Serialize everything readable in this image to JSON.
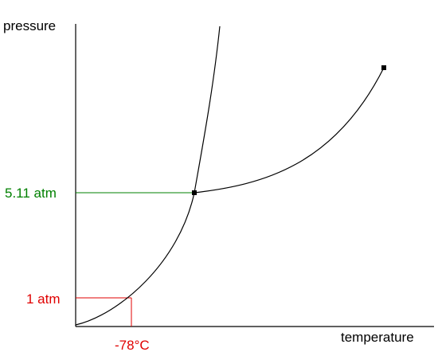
{
  "diagram": {
    "y_axis_label": "pressure",
    "x_axis_label": "temperature",
    "triple_point_pressure_label": "5.11 atm",
    "one_atm_label": "1 atm",
    "sublimation_temp_label": "-78°C",
    "colors": {
      "axis": "#000000",
      "curves": "#000000",
      "triple_point_guides": "#008000",
      "one_atm_guides": "#e00000"
    },
    "markers": [
      "triple-point",
      "critical-point"
    ]
  }
}
